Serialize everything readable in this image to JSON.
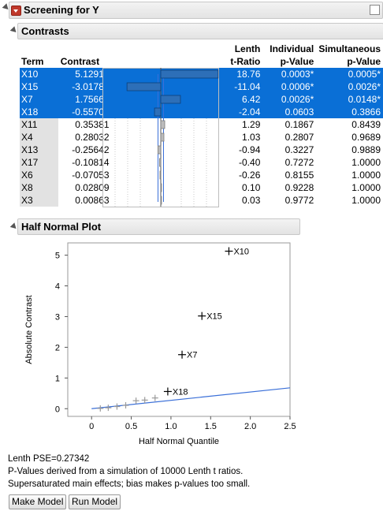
{
  "screening": {
    "title": "Screening for Y"
  },
  "contrasts": {
    "title": "Contrasts",
    "headers": {
      "term": "Term",
      "contrast": "Contrast",
      "lenth": "Lenth",
      "t_ratio": "t-Ratio",
      "individual": "Individual",
      "simultaneous": "Simultaneous",
      "p_value": "p-Value"
    },
    "rows": [
      {
        "term": "X10",
        "contrast": "5.12918",
        "t": "18.76",
        "ip": "0.0003*",
        "sp": "0.0005*",
        "selected": true
      },
      {
        "term": "X15",
        "contrast": "-3.01789",
        "t": "-11.04",
        "ip": "0.0006*",
        "sp": "0.0026*",
        "selected": true
      },
      {
        "term": "X7",
        "contrast": "1.75669",
        "t": "6.42",
        "ip": "0.0026*",
        "sp": "0.0148*",
        "selected": true
      },
      {
        "term": "X18",
        "contrast": "-0.55701",
        "t": "-2.04",
        "ip": "0.0603",
        "sp": "0.3866",
        "selected": true
      },
      {
        "term": "X11",
        "contrast": "0.35381",
        "t": "1.29",
        "ip": "0.1867",
        "sp": "0.8439",
        "selected": false
      },
      {
        "term": "X4",
        "contrast": "0.28032",
        "t": "1.03",
        "ip": "0.2807",
        "sp": "0.9689",
        "selected": false
      },
      {
        "term": "X13",
        "contrast": "-0.25642",
        "t": "-0.94",
        "ip": "0.3227",
        "sp": "0.9889",
        "selected": false
      },
      {
        "term": "X17",
        "contrast": "-0.10814",
        "t": "-0.40",
        "ip": "0.7272",
        "sp": "1.0000",
        "selected": false
      },
      {
        "term": "X6",
        "contrast": "-0.07053",
        "t": "-0.26",
        "ip": "0.8155",
        "sp": "1.0000",
        "selected": false
      },
      {
        "term": "X8",
        "contrast": "0.02809",
        "t": "0.10",
        "ip": "0.9228",
        "sp": "1.0000",
        "selected": false
      },
      {
        "term": "X3",
        "contrast": "0.00863",
        "t": "0.03",
        "ip": "0.9772",
        "sp": "1.0000",
        "selected": false
      }
    ]
  },
  "half_normal": {
    "title": "Half Normal Plot"
  },
  "chart_data": {
    "type": "scatter",
    "xlabel": "Half Normal Quantile",
    "ylabel": "Absolute Contrast",
    "xlim": [
      -0.3,
      2.5
    ],
    "ylim": [
      -0.25,
      5.4
    ],
    "xticks": [
      "0",
      "0.5",
      "1.0",
      "1.5",
      "2.0",
      "2.5"
    ],
    "xtick_values": [
      0,
      0.5,
      1.0,
      1.5,
      2.0,
      2.5
    ],
    "yticks": [
      "0",
      "1",
      "2",
      "3",
      "4",
      "5"
    ],
    "ytick_values": [
      0,
      1,
      2,
      3,
      4,
      5
    ],
    "points": [
      {
        "x": 1.73,
        "y": 5.13,
        "label": "X10",
        "labeled": true
      },
      {
        "x": 1.39,
        "y": 3.02,
        "label": "X15",
        "labeled": true
      },
      {
        "x": 1.14,
        "y": 1.76,
        "label": "X7",
        "labeled": true
      },
      {
        "x": 0.96,
        "y": 0.56,
        "label": "X18",
        "labeled": true
      },
      {
        "x": 0.8,
        "y": 0.35,
        "label": "",
        "labeled": false
      },
      {
        "x": 0.67,
        "y": 0.28,
        "label": "",
        "labeled": false
      },
      {
        "x": 0.56,
        "y": 0.26,
        "label": "",
        "labeled": false
      },
      {
        "x": 0.43,
        "y": 0.11,
        "label": "",
        "labeled": false
      },
      {
        "x": 0.32,
        "y": 0.07,
        "label": "",
        "labeled": false
      },
      {
        "x": 0.21,
        "y": 0.03,
        "label": "",
        "labeled": false
      },
      {
        "x": 0.11,
        "y": 0.01,
        "label": "",
        "labeled": false
      }
    ],
    "line": {
      "x0": 0,
      "y0": 0,
      "x1": 2.5,
      "y1": 0.68
    },
    "colors": {
      "line": "#3a6fd8",
      "labeled_point": "#000000",
      "other_point": "#9a9a9a"
    }
  },
  "notes": {
    "pse": "Lenth PSE=0.27342",
    "pvalues": "P-Values derived from a simulation of 10000 Lenth t ratios.",
    "supersat": "Supersaturated main effects; bias makes p-values too small."
  },
  "buttons": {
    "make_model": "Make Model",
    "run_model": "Run Model"
  },
  "colors": {
    "selection": "#0a6fd6",
    "significant_orange": "#ff8c3a",
    "significant_pink": "#ff3d9a"
  }
}
